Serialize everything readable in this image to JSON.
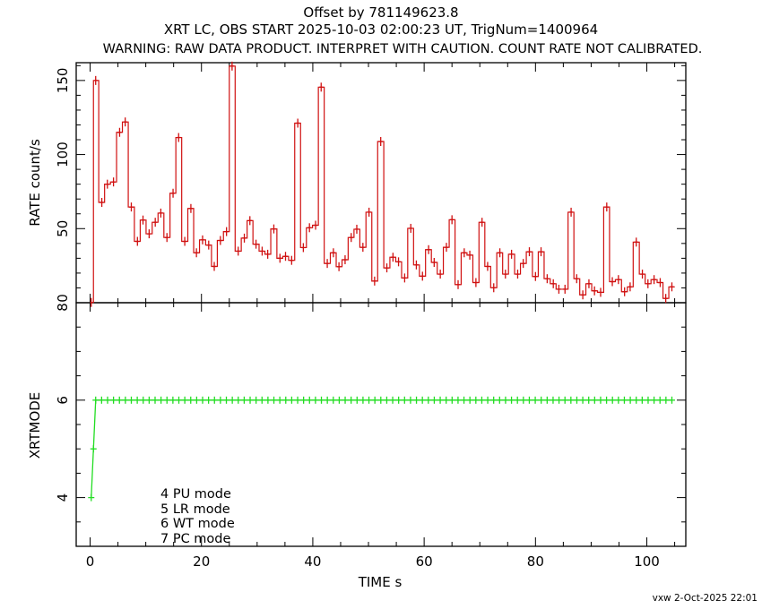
{
  "chart_data": [
    {
      "type": "line",
      "title_lines": [
        "Offset by 781149623.8",
        "XRT LC, OBS START 2025-10-03 02:00:23 UT, TrigNum=1400964",
        "WARNING: RAW DATA PRODUCT. INTERPRET WITH CAUTION. COUNT RATE NOT CALIBRATED."
      ],
      "xlabel": "TIME  s",
      "ylabel": "RATE  count/s",
      "xlim": [
        -2.5,
        107
      ],
      "ylim": [
        0,
        162
      ],
      "xticks": [
        0,
        20,
        40,
        60,
        80,
        100
      ],
      "yticks": [
        0,
        50,
        100,
        150
      ],
      "ytick_labels": [
        "0",
        "50",
        "100",
        "150"
      ],
      "color": "#d01010",
      "drawstyle": "histogram-steps-with-crosses",
      "x": [
        0.2,
        1.0,
        2.1,
        3.1,
        4.2,
        5.3,
        6.3,
        7.4,
        8.5,
        9.5,
        10.6,
        11.7,
        12.7,
        13.8,
        14.9,
        15.9,
        17.0,
        18.1,
        19.1,
        20.2,
        21.3,
        22.3,
        23.4,
        24.5,
        25.5,
        26.6,
        27.7,
        28.7,
        29.8,
        30.9,
        31.9,
        33.0,
        34.1,
        35.1,
        36.2,
        37.3,
        38.3,
        39.4,
        40.5,
        41.5,
        42.6,
        43.7,
        44.7,
        45.8,
        46.9,
        47.9,
        49.0,
        50.1,
        51.1,
        52.2,
        53.3,
        54.4,
        55.4,
        56.5,
        57.6,
        58.6,
        59.7,
        60.8,
        61.8,
        62.9,
        64.0,
        65.0,
        66.1,
        67.2,
        68.2,
        69.3,
        70.4,
        71.4,
        72.5,
        73.6,
        74.6,
        75.7,
        76.8,
        77.8,
        78.9,
        80.0,
        81.0,
        82.1,
        83.2,
        84.2,
        85.3,
        86.4,
        87.4,
        88.5,
        89.6,
        90.6,
        91.7,
        92.8,
        93.8,
        94.9,
        96.0,
        97.0,
        98.1,
        99.2,
        100.2,
        101.3,
        102.4,
        103.4,
        104.5
      ],
      "y": [
        0.2,
        150,
        67.7,
        80,
        81.5,
        115,
        122,
        64.6,
        41.4,
        55.8,
        46.5,
        54.3,
        60.5,
        44,
        73.9,
        111.5,
        41.4,
        63.6,
        33.7,
        42.4,
        38.9,
        24.5,
        42,
        48,
        159.7,
        34.8,
        43.6,
        55.4,
        39.5,
        34.8,
        32.7,
        49.8,
        30,
        31.3,
        28.6,
        121.2,
        37.2,
        50.6,
        52.3,
        145.5,
        26.5,
        33.7,
        24.3,
        29,
        44,
        49.6,
        37.4,
        61.1,
        14.6,
        108.8,
        23.5,
        30.7,
        27.6,
        16.7,
        50.2,
        25.5,
        17.9,
        35.8,
        27.2,
        19.3,
        37.4,
        56,
        12.2,
        33.7,
        32.1,
        13.6,
        54.3,
        24.5,
        10.1,
        33.7,
        19.3,
        32.7,
        19.3,
        26.5,
        34.4,
        17.7,
        34.4,
        16.2,
        12.8,
        9.1,
        9.1,
        61.1,
        16.2,
        5.3,
        12.8,
        8.0,
        7.0,
        64.6,
        14.2,
        15.6,
        7.4,
        10.7,
        40.9,
        19.3,
        12.8,
        15.6,
        13.6,
        2.9,
        10.7
      ]
    },
    {
      "type": "line",
      "xlabel": "TIME  s",
      "ylabel": "XRTMODE",
      "xlim": [
        -2.5,
        107
      ],
      "ylim": [
        3,
        8
      ],
      "xticks": [
        0,
        20,
        40,
        60,
        80,
        100
      ],
      "xtick_labels": [
        "0",
        "20",
        "40",
        "60",
        "80",
        "100"
      ],
      "yticks": [
        4,
        6,
        8
      ],
      "ytick_labels": [
        "4",
        "6",
        "8"
      ],
      "color": "#22dd22",
      "drawstyle": "steps-with-crosses",
      "x_lead": [
        0.2,
        0.6
      ],
      "y_lead": [
        4,
        5
      ],
      "steady_mode": 6,
      "steady_x_from": 1.0,
      "steady_x_to": 104.5,
      "steady_bins": 98,
      "legend": [
        "4 PU mode",
        "5 LR mode",
        "6 WT mode",
        "7 PC mode"
      ]
    }
  ],
  "footer": "vxw  2-Oct-2025 22:01"
}
